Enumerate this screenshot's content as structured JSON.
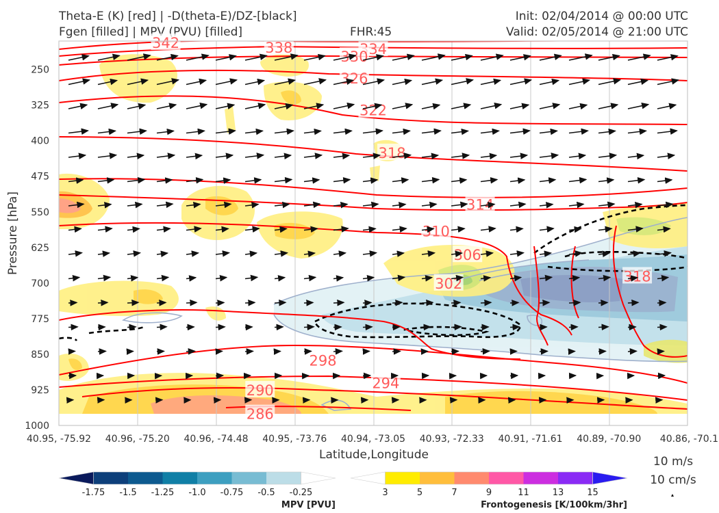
{
  "header": {
    "title_line1": "Theta-E (K) [red] | -D(theta-E)/DZ-[black]",
    "title_line2": "Fgen [filled] | MPV (PVU) [filled]",
    "fhr": "FHR:45",
    "init": "Init: 02/04/2014 @ 00:00 UTC",
    "valid": "Valid: 02/05/2014 @ 21:00 UTC"
  },
  "chart_data": {
    "type": "cross-section",
    "xlabel": "Latitude,Longitude",
    "ylabel": "Pressure [hPa]",
    "x_ticks": [
      "40.95, -75.92",
      "40.96, -75.20",
      "40.96, -74.48",
      "40.95, -73.76",
      "40.94, -73.05",
      "40.93, -72.33",
      "40.91, -71.61",
      "40.89, -70.90",
      "40.86, -70.1"
    ],
    "y_ticks": [
      250,
      325,
      400,
      475,
      550,
      625,
      700,
      775,
      850,
      925,
      1000
    ],
    "ylim": [
      1000,
      190
    ],
    "theta_e_labels": [
      {
        "value": "342",
        "x_frac": 0.17,
        "p": 193
      },
      {
        "value": "338",
        "x_frac": 0.35,
        "p": 203
      },
      {
        "value": "334",
        "x_frac": 0.5,
        "p": 206
      },
      {
        "value": "330",
        "x_frac": 0.47,
        "p": 222
      },
      {
        "value": "326",
        "x_frac": 0.47,
        "p": 268
      },
      {
        "value": "322",
        "x_frac": 0.5,
        "p": 335
      },
      {
        "value": "318",
        "x_frac": 0.53,
        "p": 425
      },
      {
        "value": "314",
        "x_frac": 0.67,
        "p": 534
      },
      {
        "value": "310",
        "x_frac": 0.6,
        "p": 590
      },
      {
        "value": "306",
        "x_frac": 0.65,
        "p": 640
      },
      {
        "value": "302",
        "x_frac": 0.62,
        "p": 700
      },
      {
        "value": "318",
        "x_frac": 0.92,
        "p": 685
      },
      {
        "value": "298",
        "x_frac": 0.42,
        "p": 862
      },
      {
        "value": "294",
        "x_frac": 0.52,
        "p": 910
      },
      {
        "value": "290",
        "x_frac": 0.32,
        "p": 925
      },
      {
        "value": "286",
        "x_frac": 0.32,
        "p": 975
      }
    ],
    "mpv_colorbar": {
      "title": "MPV [PVU]",
      "ticks": [
        "-1.75",
        "-1.5",
        "-1.25",
        "-1.0",
        "-0.75",
        "-0.5",
        "-0.25"
      ],
      "colors": [
        "#0a1a5c",
        "#0d3f7a",
        "#0d5a8f",
        "#107fa6",
        "#3d9fc0",
        "#78bcd3",
        "#bcdde7",
        "#ffffff"
      ]
    },
    "fgen_colorbar": {
      "title": "Frontogenesis [K/100km/3hr]",
      "ticks": [
        "3",
        "5",
        "7",
        "9",
        "11",
        "13",
        "15"
      ],
      "colors": [
        "#ffffff",
        "#ffec00",
        "#ffbe3c",
        "#ff8a6e",
        "#ff58a6",
        "#cc2ee0",
        "#8a2bf5",
        "#2a1cf0"
      ]
    },
    "wind_legend": {
      "line1": "10 m/s",
      "line2": "10 cm/s"
    },
    "colors": {
      "theta_e": "#ff0000",
      "dthetae_dz": "#000000",
      "fgen_fill": "#ffef60",
      "mpv_fill": "#9ec6dc",
      "labels": "#ff5a5a"
    }
  }
}
